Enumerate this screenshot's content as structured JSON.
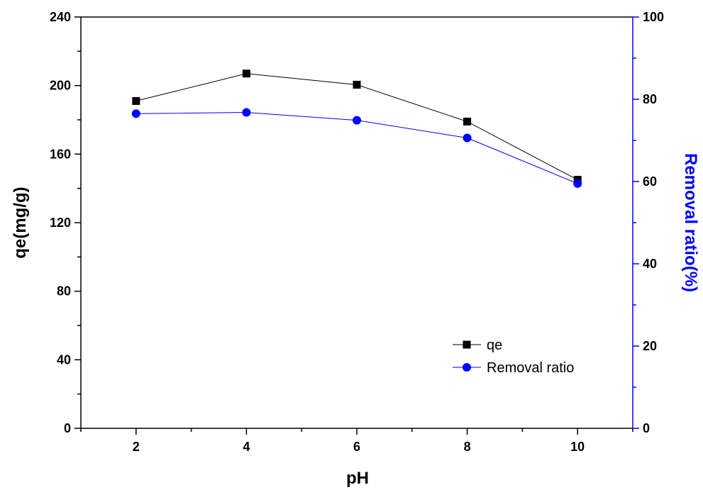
{
  "chart_data": {
    "type": "line",
    "title": "",
    "xlabel": "pH",
    "ylabel": "qe(mg/g)",
    "y2label": "Removal ratio(%)",
    "xlim": [
      1,
      11
    ],
    "ylim": [
      0,
      240
    ],
    "y2lim": [
      0,
      100
    ],
    "x_ticks": [
      2,
      4,
      6,
      8,
      10
    ],
    "y_ticks": [
      0,
      40,
      80,
      120,
      160,
      200,
      240
    ],
    "y2_ticks": [
      0,
      20,
      40,
      60,
      80,
      100
    ],
    "grid": false,
    "legend_position": "bottom-right",
    "x": [
      2,
      4,
      6,
      8,
      10
    ],
    "series": [
      {
        "name": "qe",
        "axis": "left",
        "marker": "square",
        "color": "#000000",
        "values": [
          191,
          207,
          200.5,
          179,
          145
        ]
      },
      {
        "name": "Removal ratio",
        "axis": "right",
        "marker": "circle",
        "color": "#0000ff",
        "values": [
          76.5,
          76.8,
          74.9,
          70.6,
          59.5
        ]
      }
    ],
    "colors": {
      "left_axis": "#000000",
      "right_axis": "#0000ff"
    }
  }
}
